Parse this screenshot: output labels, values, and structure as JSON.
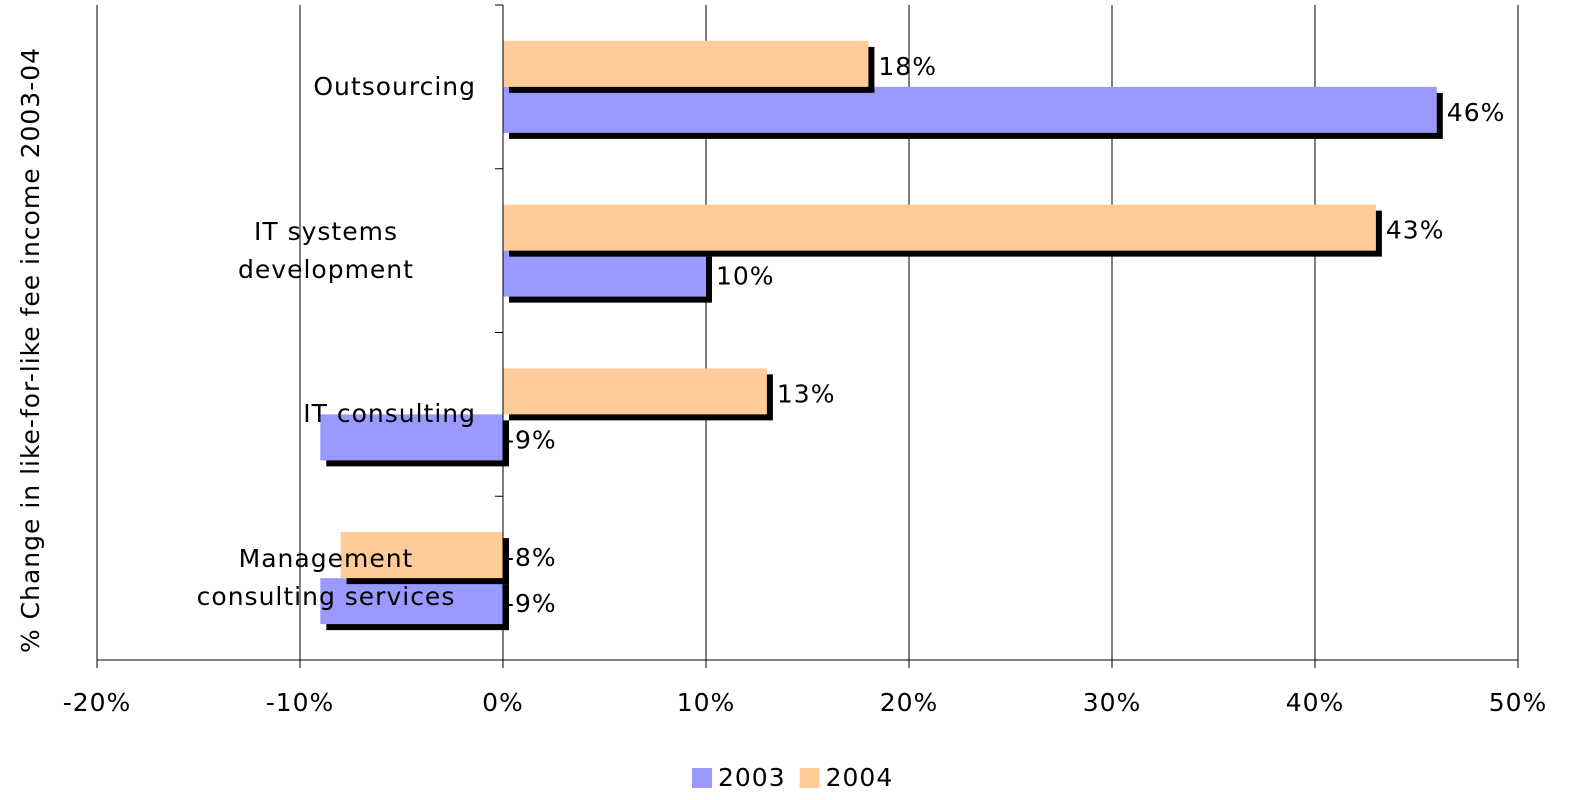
{
  "chart_data": {
    "type": "hbar",
    "y_axis_label": "% Change in like-for-like fee income 2003-04",
    "categories": [
      "Outsourcing",
      "IT systems development",
      "IT consulting",
      "Management consulting services"
    ],
    "series": [
      {
        "name": "2003",
        "color": "#9999ff",
        "values": [
          46,
          10,
          -9,
          -9
        ],
        "value_labels": [
          "46%",
          "10%",
          "-9%",
          "-9%"
        ]
      },
      {
        "name": "2004",
        "color": "#ffcc99",
        "values": [
          18,
          43,
          13,
          -8
        ],
        "value_labels": [
          "18%",
          "43%",
          "13%",
          "-8%"
        ]
      }
    ],
    "xlim": [
      -20,
      50
    ],
    "xticks": [
      {
        "value": -20,
        "label": "-20%"
      },
      {
        "value": -10,
        "label": "-10%"
      },
      {
        "value": 0,
        "label": "0%"
      },
      {
        "value": 10,
        "label": "10%"
      },
      {
        "value": 20,
        "label": "20%"
      },
      {
        "value": 30,
        "label": "30%"
      },
      {
        "value": 40,
        "label": "40%"
      },
      {
        "value": 50,
        "label": "50%"
      }
    ],
    "grid": true,
    "legend": "bottom"
  }
}
